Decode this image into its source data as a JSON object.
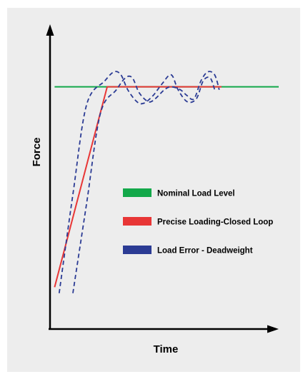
{
  "chart_data": {
    "type": "line",
    "title": "",
    "xlabel": "Time",
    "ylabel": "Force",
    "xlim": [
      0,
      10
    ],
    "ylim": [
      0,
      10
    ],
    "grid": false,
    "legend_placement": "center-right",
    "series": [
      {
        "name": "Nominal Load Level",
        "color": "#13a84a",
        "style": "solid",
        "x": [
          0.2,
          10
        ],
        "y": [
          8.1,
          8.1
        ]
      },
      {
        "name": "Precise Loading-Closed Loop",
        "color": "#e83636",
        "style": "solid",
        "x": [
          0.2,
          2.5,
          7.5
        ],
        "y": [
          1.4,
          8.1,
          8.1
        ]
      },
      {
        "name": "Load Error - Deadweight",
        "color": "#2b3b94",
        "style": "dashed",
        "x": [
          0.4,
          1.0,
          1.6,
          2.4,
          2.8,
          3.1,
          3.4,
          3.8,
          4.1,
          4.5,
          4.9,
          5.3,
          5.6,
          6.0,
          6.4,
          6.7,
          7.0,
          7.2
        ],
        "y": [
          1.2,
          4.5,
          7.5,
          8.3,
          8.6,
          8.5,
          8.0,
          7.6,
          7.55,
          7.8,
          8.2,
          8.5,
          8.0,
          7.6,
          7.7,
          8.3,
          8.4,
          8.0
        ]
      },
      {
        "name": "Load Error - Deadweight",
        "color": "#2b3b94",
        "style": "dashed",
        "x": [
          1.0,
          1.6,
          2.2,
          2.9,
          3.3,
          3.6,
          3.9,
          4.3,
          4.6,
          5.0,
          5.3,
          5.7,
          6.0,
          6.3,
          6.6,
          6.9,
          7.2,
          7.4
        ],
        "y": [
          1.2,
          4.2,
          7.2,
          8.0,
          8.4,
          8.4,
          7.9,
          7.6,
          7.7,
          8.0,
          8.1,
          8.0,
          7.8,
          7.7,
          8.3,
          8.6,
          8.5,
          8.0
        ]
      }
    ],
    "legend": [
      {
        "label": "Nominal Load Level",
        "color": "#13a84a"
      },
      {
        "label": "Precise Loading-Closed Loop",
        "color": "#e83636"
      },
      {
        "label": "Load Error - Deadweight",
        "color": "#2b3b94"
      }
    ]
  }
}
